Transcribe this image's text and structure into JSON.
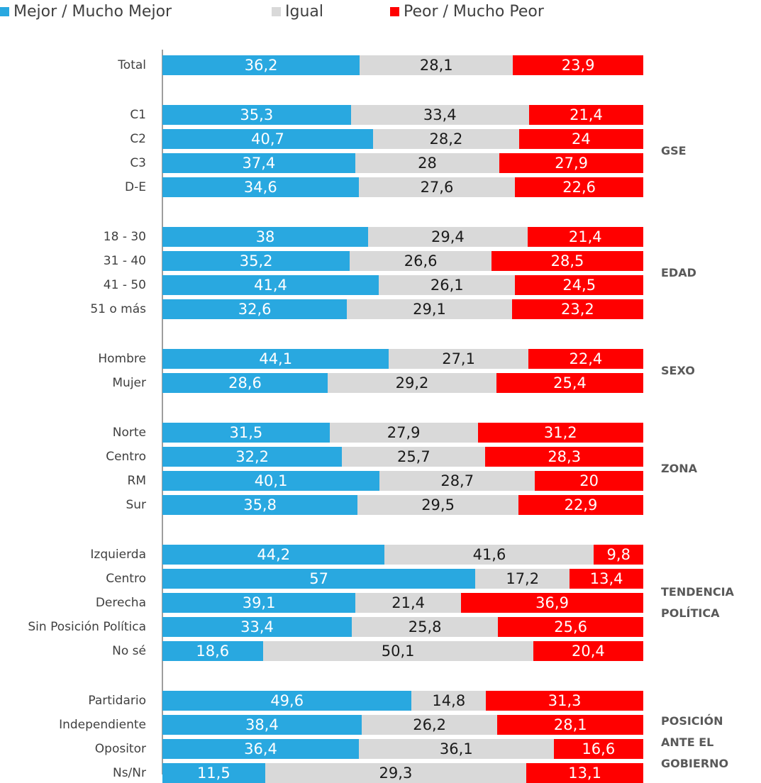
{
  "chart_data": {
    "type": "bar",
    "orientation": "horizontal",
    "stacked": true,
    "legend_position": "top",
    "series": [
      {
        "name": "Mejor / Mucho Mejor",
        "color": "#29a8e0"
      },
      {
        "name": "Igual",
        "color": "#d9d9d9"
      },
      {
        "name": "Peor / Mucho Peor",
        "color": "#ff0000"
      }
    ],
    "groups": [
      {
        "label": "",
        "rows": [
          {
            "category": "Total",
            "values": [
              "36,2",
              "28,1",
              "23,9"
            ]
          }
        ]
      },
      {
        "label": "GSE",
        "rows": [
          {
            "category": "C1",
            "values": [
              "35,3",
              "33,4",
              "21,4"
            ]
          },
          {
            "category": "C2",
            "values": [
              "40,7",
              "28,2",
              "24"
            ]
          },
          {
            "category": "C3",
            "values": [
              "37,4",
              "28",
              "27,9"
            ]
          },
          {
            "category": "D-E",
            "values": [
              "34,6",
              "27,6",
              "22,6"
            ]
          }
        ]
      },
      {
        "label": "EDAD",
        "rows": [
          {
            "category": "18 - 30",
            "values": [
              "38",
              "29,4",
              "21,4"
            ]
          },
          {
            "category": "31 - 40",
            "values": [
              "35,2",
              "26,6",
              "28,5"
            ]
          },
          {
            "category": "41 - 50",
            "values": [
              "41,4",
              "26,1",
              "24,5"
            ]
          },
          {
            "category": "51 o más",
            "values": [
              "32,6",
              "29,1",
              "23,2"
            ]
          }
        ]
      },
      {
        "label": "SEXO",
        "rows": [
          {
            "category": "Hombre",
            "values": [
              "44,1",
              "27,1",
              "22,4"
            ]
          },
          {
            "category": "Mujer",
            "values": [
              "28,6",
              "29,2",
              "25,4"
            ]
          }
        ]
      },
      {
        "label": "ZONA",
        "rows": [
          {
            "category": "Norte",
            "values": [
              "31,5",
              "27,9",
              "31,2"
            ]
          },
          {
            "category": "Centro",
            "values": [
              "32,2",
              "25,7",
              "28,3"
            ]
          },
          {
            "category": "RM",
            "values": [
              "40,1",
              "28,7",
              "20"
            ]
          },
          {
            "category": "Sur",
            "values": [
              "35,8",
              "29,5",
              "22,9"
            ]
          }
        ]
      },
      {
        "label": "TENDENCIA POLÍTICA",
        "rows": [
          {
            "category": "Izquierda",
            "values": [
              "44,2",
              "41,6",
              "9,8"
            ]
          },
          {
            "category": "Centro",
            "values": [
              "57",
              "17,2",
              "13,4"
            ]
          },
          {
            "category": "Derecha",
            "values": [
              "39,1",
              "21,4",
              "36,9"
            ]
          },
          {
            "category": "Sin Posición Política",
            "values": [
              "33,4",
              "25,8",
              "25,6"
            ]
          },
          {
            "category": "No sé",
            "values": [
              "18,6",
              "50,1",
              "20,4"
            ]
          }
        ]
      },
      {
        "label": "POSICIÓN ANTE EL GOBIERNO",
        "rows": [
          {
            "category": "Partidario",
            "values": [
              "49,6",
              "14,8",
              "31,3"
            ]
          },
          {
            "category": "Independiente",
            "values": [
              "38,4",
              "26,2",
              "28,1"
            ]
          },
          {
            "category": "Opositor",
            "values": [
              "36,4",
              "36,1",
              "16,6"
            ]
          },
          {
            "category": "Ns/Nr",
            "values": [
              "11,5",
              "29,3",
              "13,1"
            ]
          }
        ]
      }
    ]
  }
}
